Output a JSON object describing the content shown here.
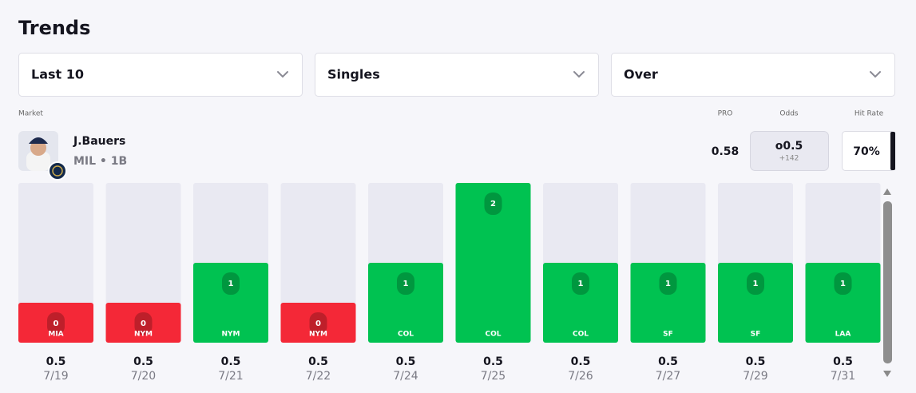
{
  "header": {
    "title": "Trends"
  },
  "filters": [
    "Last 10",
    "Singles",
    "Over"
  ],
  "columns": {
    "market": "Market",
    "pro": "PRO",
    "odds": "Odds",
    "hit_rate": "Hit Rate"
  },
  "player": {
    "name": "J.Bauers",
    "team_position": "MIL • 1B",
    "pro": 0.58,
    "odds_line": "o0.5",
    "odds_price": "+142",
    "hit_rate": "70%"
  },
  "chart_data": {
    "type": "bar",
    "categories": [
      "7/19",
      "7/20",
      "7/21",
      "7/22",
      "7/24",
      "7/25",
      "7/26",
      "7/27",
      "7/29",
      "7/31"
    ],
    "opponents": [
      "MIA",
      "NYM",
      "NYM",
      "NYM",
      "COL",
      "COL",
      "COL",
      "SF",
      "SF",
      "LAA"
    ],
    "lines": [
      0.5,
      0.5,
      0.5,
      0.5,
      0.5,
      0.5,
      0.5,
      0.5,
      0.5,
      0.5
    ],
    "values": [
      0,
      0,
      1,
      0,
      1,
      2,
      1,
      1,
      1,
      1
    ],
    "over_color": "#00c251",
    "under_color": "#f42837",
    "track_color": "#e9e9f2"
  }
}
